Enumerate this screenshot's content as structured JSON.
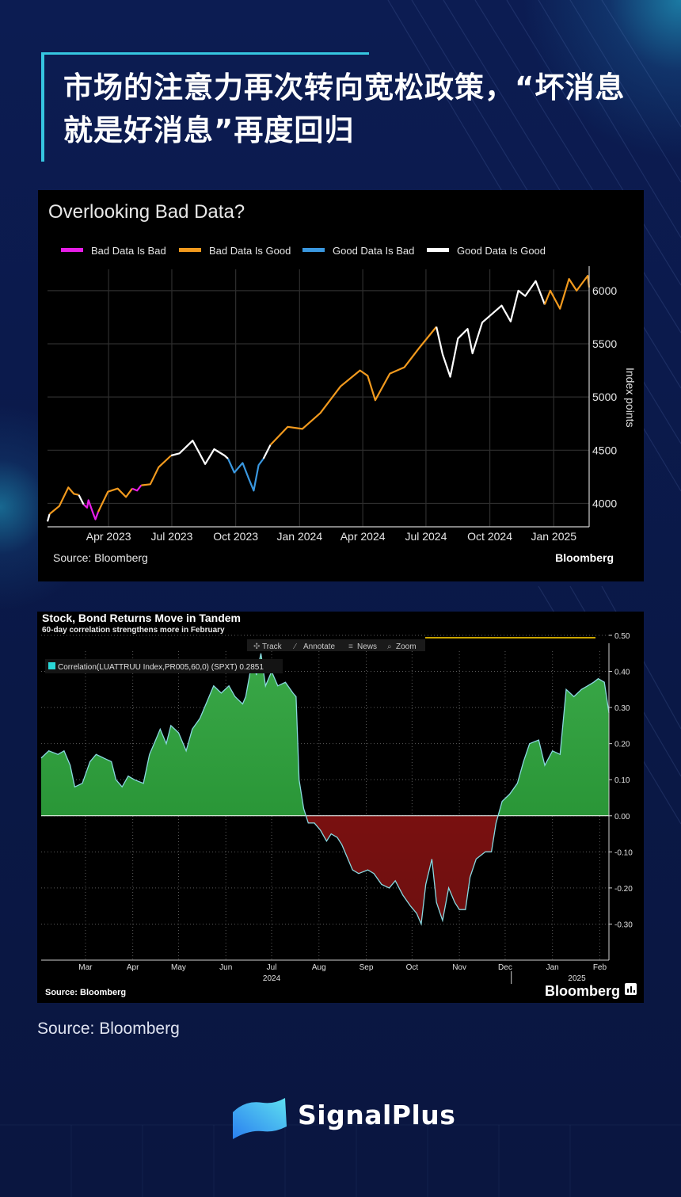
{
  "headline": "市场的注意力再次转向宽松政策，“坏消息就是好消息”再度回归",
  "source_note": "Source: Bloomberg",
  "brand": {
    "name": "SignalPlus",
    "logo_icon": "signalplus-logo-icon",
    "colors": {
      "primary": "#36c6e0",
      "secondary": "#2a7ff0"
    }
  },
  "chart_data": [
    {
      "type": "line",
      "title": "Overlooking Bad Data?",
      "ylabel": "Index points",
      "ylim": [
        3780,
        6200
      ],
      "yticks": [
        4000,
        4500,
        5000,
        5500,
        6000
      ],
      "x_start": "2023-01-03",
      "x_end": "2025-02-21",
      "xticks": [
        "2023-04-01",
        "2023-07-01",
        "2023-10-01",
        "2024-01-01",
        "2024-04-01",
        "2024-07-01",
        "2024-10-01",
        "2025-01-01"
      ],
      "xtick_labels": [
        "Apr 2023",
        "Jul 2023",
        "Oct 2023",
        "Jan 2024",
        "Apr 2024",
        "Jul 2024",
        "Oct 2024",
        "Jan 2025"
      ],
      "source": "Source: Bloomberg",
      "logo": "Bloomberg",
      "legend": [
        {
          "name": "Bad Data Is Bad",
          "color": "#e81ee8"
        },
        {
          "name": "Bad Data Is Good",
          "color": "#f29a1e"
        },
        {
          "name": "Good Data Is Bad",
          "color": "#3a98e0"
        },
        {
          "name": "Good Data Is Good",
          "color": "#ffffff"
        }
      ],
      "series": [
        {
          "name": "Good Data Is Good",
          "color": "#ffffff",
          "points": [
            [
              "2023-01-03",
              3830
            ],
            [
              "2023-01-06",
              3900
            ]
          ]
        },
        {
          "name": "Bad Data Is Good",
          "color": "#f29a1e",
          "points": [
            [
              "2023-01-06",
              3900
            ],
            [
              "2023-01-20",
              3975
            ],
            [
              "2023-02-02",
              4150
            ],
            [
              "2023-02-10",
              4090
            ],
            [
              "2023-02-17",
              4080
            ]
          ]
        },
        {
          "name": "Good Data Is Good",
          "color": "#ffffff",
          "points": [
            [
              "2023-02-17",
              4080
            ],
            [
              "2023-02-24",
              3990
            ]
          ]
        },
        {
          "name": "Bad Data Is Bad",
          "color": "#e81ee8",
          "points": [
            [
              "2023-02-24",
              3990
            ],
            [
              "2023-03-01",
              3960
            ],
            [
              "2023-03-03",
              4030
            ],
            [
              "2023-03-10",
              3900
            ],
            [
              "2023-03-13",
              3850
            ],
            [
              "2023-03-17",
              3920
            ]
          ]
        },
        {
          "name": "Bad Data Is Good",
          "color": "#f29a1e",
          "points": [
            [
              "2023-03-17",
              3920
            ],
            [
              "2023-03-31",
              4110
            ],
            [
              "2023-04-14",
              4140
            ],
            [
              "2023-04-26",
              4060
            ],
            [
              "2023-05-05",
              4140
            ]
          ]
        },
        {
          "name": "Bad Data Is Bad",
          "color": "#e81ee8",
          "points": [
            [
              "2023-05-05",
              4140
            ],
            [
              "2023-05-12",
              4120
            ],
            [
              "2023-05-18",
              4170
            ]
          ]
        },
        {
          "name": "Bad Data Is Good",
          "color": "#f29a1e",
          "points": [
            [
              "2023-05-18",
              4170
            ],
            [
              "2023-05-31",
              4180
            ],
            [
              "2023-06-12",
              4340
            ],
            [
              "2023-06-30",
              4450
            ]
          ]
        },
        {
          "name": "Good Data Is Good",
          "color": "#ffffff",
          "points": [
            [
              "2023-06-30",
              4450
            ],
            [
              "2023-07-12",
              4470
            ],
            [
              "2023-07-31",
              4590
            ],
            [
              "2023-08-10",
              4470
            ],
            [
              "2023-08-18",
              4370
            ],
            [
              "2023-08-31",
              4510
            ],
            [
              "2023-09-15",
              4450
            ],
            [
              "2023-09-20",
              4420
            ]
          ]
        },
        {
          "name": "Good Data Is Bad",
          "color": "#3a98e0",
          "points": [
            [
              "2023-09-20",
              4420
            ],
            [
              "2023-09-29",
              4290
            ],
            [
              "2023-10-11",
              4380
            ],
            [
              "2023-10-20",
              4230
            ],
            [
              "2023-10-27",
              4120
            ],
            [
              "2023-11-03",
              4360
            ],
            [
              "2023-11-10",
              4420
            ]
          ]
        },
        {
          "name": "Good Data Is Good",
          "color": "#ffffff",
          "points": [
            [
              "2023-11-10",
              4420
            ],
            [
              "2023-11-20",
              4550
            ]
          ]
        },
        {
          "name": "Bad Data Is Good",
          "color": "#f29a1e",
          "points": [
            [
              "2023-11-20",
              4550
            ],
            [
              "2023-12-15",
              4720
            ],
            [
              "2024-01-05",
              4700
            ],
            [
              "2024-01-31",
              4850
            ],
            [
              "2024-02-29",
              5100
            ],
            [
              "2024-03-28",
              5250
            ],
            [
              "2024-04-08",
              5200
            ],
            [
              "2024-04-19",
              4970
            ],
            [
              "2024-05-10",
              5220
            ],
            [
              "2024-05-31",
              5280
            ],
            [
              "2024-06-21",
              5460
            ],
            [
              "2024-07-16",
              5660
            ]
          ]
        },
        {
          "name": "Good Data Is Good",
          "color": "#ffffff",
          "points": [
            [
              "2024-07-16",
              5660
            ],
            [
              "2024-07-25",
              5400
            ],
            [
              "2024-08-05",
              5190
            ],
            [
              "2024-08-16",
              5550
            ],
            [
              "2024-08-30",
              5640
            ],
            [
              "2024-09-06",
              5410
            ],
            [
              "2024-09-20",
              5700
            ],
            [
              "2024-10-18",
              5860
            ],
            [
              "2024-10-31",
              5710
            ],
            [
              "2024-11-11",
              6000
            ],
            [
              "2024-11-21",
              5950
            ],
            [
              "2024-12-06",
              6090
            ],
            [
              "2024-12-19",
              5870
            ]
          ]
        },
        {
          "name": "Bad Data Is Good",
          "color": "#f29a1e",
          "points": [
            [
              "2024-12-19",
              5870
            ],
            [
              "2024-12-27",
              6000
            ],
            [
              "2025-01-10",
              5830
            ],
            [
              "2025-01-23",
              6110
            ],
            [
              "2025-02-03",
              6000
            ],
            [
              "2025-02-19",
              6140
            ],
            [
              "2025-02-21",
              6030
            ]
          ]
        }
      ]
    },
    {
      "type": "area",
      "title": "Stock, Bond Returns Move in Tandem",
      "subtitle": "60-day correlation strengthens more in February",
      "toolbar": [
        "Track",
        "Annotate",
        "News",
        "Zoom"
      ],
      "legend_label": "Correlation(LUATTRUU Index,PR005,60,0) (SPXT) 0.2851",
      "current_value": 0.2851,
      "ylim": [
        -0.4,
        0.5
      ],
      "yticks": [
        -0.3,
        -0.2,
        -0.1,
        0.0,
        0.1,
        0.2,
        0.3,
        0.4,
        0.5
      ],
      "ytick_labels": [
        "-0.30",
        "-0.20",
        "-0.10",
        "0.00",
        "0.10",
        "0.20",
        "0.30",
        "0.40",
        "0.50"
      ],
      "x_start": "2024-02-15",
      "x_end": "2025-02-21",
      "xticks": [
        "2024-03-15",
        "2024-04-15",
        "2024-05-15",
        "2024-06-15",
        "2024-07-15",
        "2024-08-15",
        "2024-09-15",
        "2024-10-15",
        "2024-11-15",
        "2024-12-15",
        "2025-01-15",
        "2025-02-15"
      ],
      "xtick_labels": [
        "Mar",
        "Apr",
        "May",
        "Jun",
        "Jul",
        "Aug",
        "Sep",
        "Oct",
        "Nov",
        "Dec",
        "Jan",
        "Feb"
      ],
      "year_labels": [
        {
          "label": "2024",
          "date": "2024-07-15"
        },
        {
          "label": "2025",
          "date": "2025-01-31"
        }
      ],
      "source": "Source: Bloomberg",
      "logo": "Bloomberg",
      "positive_color": "#1f8a2c",
      "negative_color": "#8a0f0f",
      "line_color": "#8ad8e0",
      "points": [
        [
          "2024-02-15",
          0.16
        ],
        [
          "2024-02-20",
          0.18
        ],
        [
          "2024-02-26",
          0.17
        ],
        [
          "2024-03-01",
          0.18
        ],
        [
          "2024-03-05",
          0.14
        ],
        [
          "2024-03-08",
          0.08
        ],
        [
          "2024-03-13",
          0.09
        ],
        [
          "2024-03-18",
          0.15
        ],
        [
          "2024-03-22",
          0.17
        ],
        [
          "2024-03-27",
          0.16
        ],
        [
          "2024-04-01",
          0.15
        ],
        [
          "2024-04-04",
          0.1
        ],
        [
          "2024-04-08",
          0.08
        ],
        [
          "2024-04-12",
          0.11
        ],
        [
          "2024-04-16",
          0.1
        ],
        [
          "2024-04-22",
          0.09
        ],
        [
          "2024-04-26",
          0.17
        ],
        [
          "2024-04-30",
          0.21
        ],
        [
          "2024-05-03",
          0.24
        ],
        [
          "2024-05-07",
          0.2
        ],
        [
          "2024-05-10",
          0.25
        ],
        [
          "2024-05-15",
          0.23
        ],
        [
          "2024-05-20",
          0.18
        ],
        [
          "2024-05-24",
          0.24
        ],
        [
          "2024-05-29",
          0.27
        ],
        [
          "2024-06-03",
          0.32
        ],
        [
          "2024-06-07",
          0.36
        ],
        [
          "2024-06-12",
          0.34
        ],
        [
          "2024-06-17",
          0.36
        ],
        [
          "2024-06-21",
          0.33
        ],
        [
          "2024-06-26",
          0.31
        ],
        [
          "2024-06-28",
          0.33
        ],
        [
          "2024-07-01",
          0.4
        ],
        [
          "2024-07-03",
          0.43
        ],
        [
          "2024-07-05",
          0.39
        ],
        [
          "2024-07-08",
          0.45
        ],
        [
          "2024-07-11",
          0.36
        ],
        [
          "2024-07-15",
          0.4
        ],
        [
          "2024-07-19",
          0.36
        ],
        [
          "2024-07-24",
          0.37
        ],
        [
          "2024-07-29",
          0.34
        ],
        [
          "2024-07-31",
          0.33
        ],
        [
          "2024-08-02",
          0.1
        ],
        [
          "2024-08-05",
          0.02
        ],
        [
          "2024-08-08",
          -0.02
        ],
        [
          "2024-08-12",
          -0.02
        ],
        [
          "2024-08-16",
          -0.04
        ],
        [
          "2024-08-20",
          -0.07
        ],
        [
          "2024-08-23",
          -0.05
        ],
        [
          "2024-08-27",
          -0.06
        ],
        [
          "2024-08-30",
          -0.08
        ],
        [
          "2024-09-03",
          -0.12
        ],
        [
          "2024-09-06",
          -0.15
        ],
        [
          "2024-09-10",
          -0.16
        ],
        [
          "2024-09-16",
          -0.15
        ],
        [
          "2024-09-20",
          -0.16
        ],
        [
          "2024-09-25",
          -0.19
        ],
        [
          "2024-09-30",
          -0.2
        ],
        [
          "2024-10-04",
          -0.18
        ],
        [
          "2024-10-09",
          -0.22
        ],
        [
          "2024-10-14",
          -0.25
        ],
        [
          "2024-10-18",
          -0.27
        ],
        [
          "2024-10-21",
          -0.3
        ],
        [
          "2024-10-24",
          -0.19
        ],
        [
          "2024-10-28",
          -0.12
        ],
        [
          "2024-10-31",
          -0.24
        ],
        [
          "2024-11-04",
          -0.29
        ],
        [
          "2024-11-08",
          -0.2
        ],
        [
          "2024-11-12",
          -0.24
        ],
        [
          "2024-11-15",
          -0.26
        ],
        [
          "2024-11-19",
          -0.26
        ],
        [
          "2024-11-22",
          -0.17
        ],
        [
          "2024-11-26",
          -0.12
        ],
        [
          "2024-12-02",
          -0.1
        ],
        [
          "2024-12-06",
          -0.1
        ],
        [
          "2024-12-09",
          -0.02
        ],
        [
          "2024-12-13",
          0.04
        ],
        [
          "2024-12-18",
          0.06
        ],
        [
          "2024-12-23",
          0.09
        ],
        [
          "2024-12-27",
          0.15
        ],
        [
          "2024-12-31",
          0.2
        ],
        [
          "2025-01-06",
          0.21
        ],
        [
          "2025-01-10",
          0.14
        ],
        [
          "2025-01-15",
          0.18
        ],
        [
          "2025-01-20",
          0.17
        ],
        [
          "2025-01-24",
          0.35
        ],
        [
          "2025-01-29",
          0.33
        ],
        [
          "2025-02-03",
          0.35
        ],
        [
          "2025-02-07",
          0.36
        ],
        [
          "2025-02-11",
          0.37
        ],
        [
          "2025-02-14",
          0.38
        ],
        [
          "2025-02-18",
          0.37
        ],
        [
          "2025-02-21",
          0.2851
        ]
      ]
    }
  ]
}
